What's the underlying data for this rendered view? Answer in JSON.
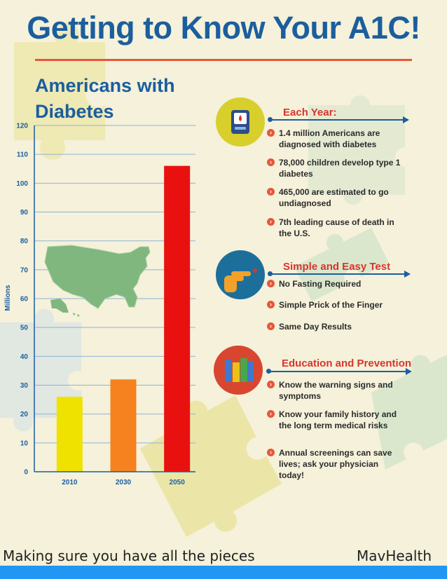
{
  "title": "Getting to Know Your A1C!",
  "colors": {
    "background": "#f5f1da",
    "title": "#1b5e9e",
    "accent_red": "#d9342b",
    "bar_2010": "#f0e200",
    "bar_2030": "#f5821f",
    "bar_2050": "#e8110f",
    "footer_bar": "#2196f3"
  },
  "chart_data": {
    "type": "bar",
    "title": "Americans with Diabetes",
    "ylabel": "Millions",
    "xlabel": "",
    "categories": [
      "2010",
      "2030",
      "2050"
    ],
    "values": [
      26,
      32,
      106
    ],
    "ylim": [
      0,
      120
    ],
    "yticks": [
      "0",
      "10",
      "20",
      "30",
      "40",
      "50",
      "60",
      "70",
      "80",
      "90",
      "100",
      "110",
      "120"
    ],
    "grid": true,
    "image": "us-map"
  },
  "sections": [
    {
      "heading": "Each Year:",
      "icon": "glucose-meter-icon",
      "circle_color": "#d8cf2d",
      "items": [
        "1.4 million Americans are diagnosed with diabetes",
        "78,000 children develop type 1 diabetes",
        "465,000 are estimated to go undiagnosed",
        "7th leading cause of death in the U.S."
      ]
    },
    {
      "heading": "Simple and Easy Test",
      "icon": "finger-prick-icon",
      "circle_color": "#1d6f9b",
      "items": [
        "No Fasting Required",
        "Simple Prick of the Finger",
        "Same Day Results"
      ]
    },
    {
      "heading": "Education and Prevention",
      "icon": "books-icon",
      "circle_color": "#d9462f",
      "items": [
        "Know the warning signs and symptoms",
        "Know your family history and the long term medical risks",
        "Annual screenings can save lives; ask your physician today!"
      ]
    }
  ],
  "footer": {
    "tagline": "Making sure you have all the pieces",
    "brand": "MavHealth"
  }
}
